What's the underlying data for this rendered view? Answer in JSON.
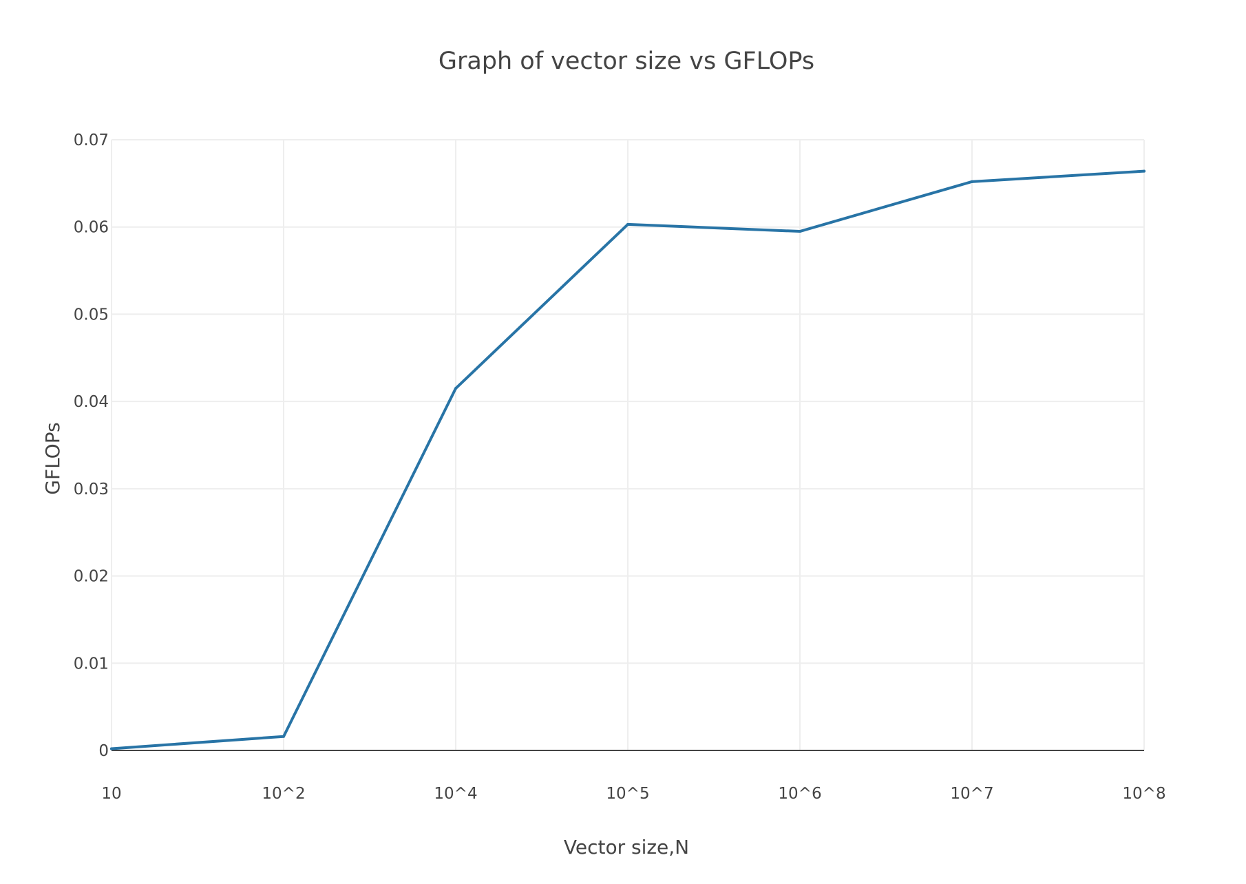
{
  "chart_data": {
    "type": "line",
    "title": "Graph of vector size vs GFLOPs",
    "xlabel": "Vector size,N",
    "ylabel": "GFLOPs",
    "categories": [
      "10",
      "10^2",
      "10^4",
      "10^5",
      "10^6",
      "10^7",
      "10^8"
    ],
    "series": [
      {
        "values": [
          0.0002,
          0.0016,
          0.0415,
          0.0603,
          0.0595,
          0.0652,
          0.0664
        ]
      }
    ],
    "ylim": [
      0,
      0.07
    ],
    "yticks": [
      0,
      0.01,
      0.02,
      0.03,
      0.04,
      0.05,
      0.06,
      0.07
    ],
    "ytick_labels": [
      "0",
      "0.01",
      "0.02",
      "0.03",
      "0.04",
      "0.05",
      "0.06",
      "0.07"
    ],
    "grid": true,
    "colors": {
      "series": "#2874a6"
    }
  }
}
